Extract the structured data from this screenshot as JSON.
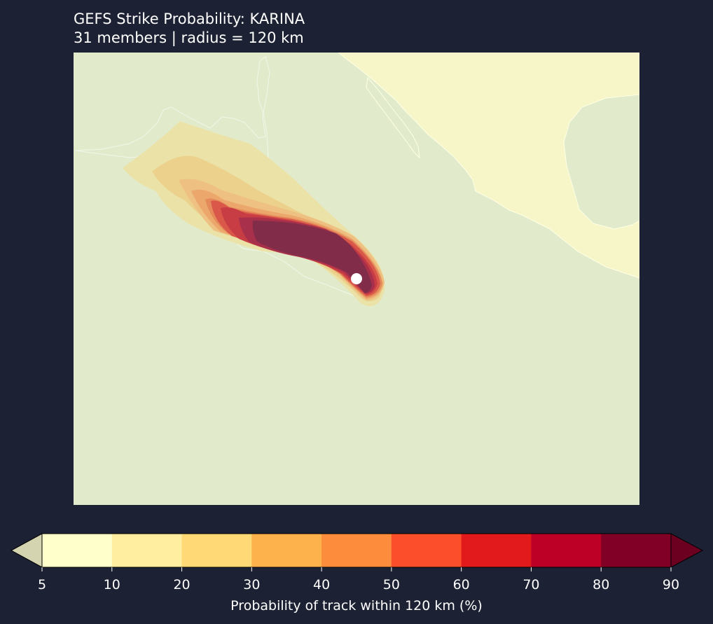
{
  "header": {
    "title": "GEFS Strike Probability: KARINA",
    "subtitle": "31 members  |  radius = 120 km"
  },
  "colorbar": {
    "ticks": [
      "5",
      "10",
      "20",
      "30",
      "40",
      "50",
      "60",
      "70",
      "80",
      "90"
    ],
    "colors": [
      "#ffffcc",
      "#ffeda0",
      "#fed976",
      "#feb24c",
      "#fd8d3c",
      "#fc4e2a",
      "#e31a1c",
      "#bd0026",
      "#800026"
    ],
    "under_color": "#d4d4b0",
    "over_color": "#6b0020",
    "label": "Probability of track within 120 km (%)"
  },
  "colors": {
    "background": "#1c2133",
    "ocean": "#e1ebcb",
    "land": "#f6f6c8",
    "coast": "#ffffe6",
    "storm_marker": "#ffffff"
  }
}
